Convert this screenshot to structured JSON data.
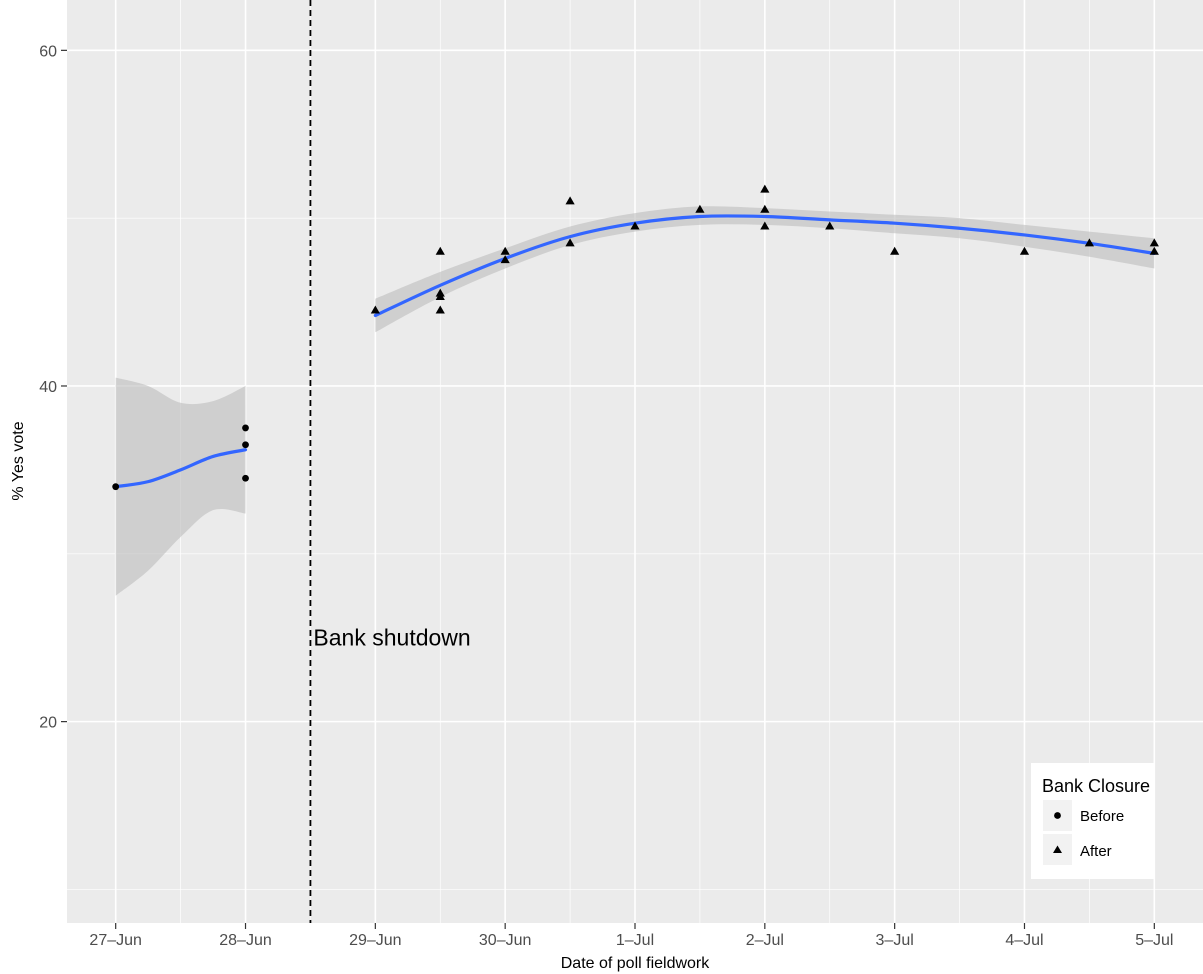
{
  "chart_data": {
    "type": "scatter",
    "xlabel": "Date of poll fieldwork",
    "ylabel": "% Yes vote",
    "x_tick_labels": [
      "27–Jun",
      "28–Jun",
      "29–Jun",
      "30–Jun",
      "1–Jul",
      "2–Jul",
      "3–Jul",
      "4–Jul",
      "5–Jul"
    ],
    "x_ticks": [
      "2015-06-27",
      "2015-06-28",
      "2015-06-29",
      "2015-06-30",
      "2015-07-01",
      "2015-07-02",
      "2015-07-03",
      "2015-07-04",
      "2015-07-05"
    ],
    "y_ticks": [
      20,
      40,
      60
    ],
    "ylim": [
      8,
      63
    ],
    "xlim": [
      "2015-06-26 15:00",
      "2015-07-05 09:00"
    ],
    "grid": true,
    "legend": {
      "title": "Bank Closure",
      "placement": "bottom-right",
      "entries": [
        {
          "label": "Before",
          "shape": "circle"
        },
        {
          "label": "After",
          "shape": "triangle"
        }
      ]
    },
    "annotations": [
      {
        "type": "vline",
        "x": "2015-06-28 12:00",
        "style": "dashed"
      },
      {
        "text": "Bank shutdown",
        "x": "2015-06-28 12:00",
        "y": 25
      }
    ],
    "series": [
      {
        "name": "Before",
        "shape": "circle",
        "points": [
          {
            "x": "2015-06-27 00:00",
            "y": 34.0
          },
          {
            "x": "2015-06-28 00:00",
            "y": 37.5
          },
          {
            "x": "2015-06-28 00:00",
            "y": 36.5
          },
          {
            "x": "2015-06-28 00:00",
            "y": 34.5
          }
        ],
        "smooth": [
          {
            "x": "2015-06-27 00:00",
            "y": 34.0,
            "lo": 27.5,
            "hi": 40.5
          },
          {
            "x": "2015-06-27 06:00",
            "y": 34.3,
            "lo": 29.0,
            "hi": 40.0
          },
          {
            "x": "2015-06-27 12:00",
            "y": 35.0,
            "lo": 31.0,
            "hi": 39.0
          },
          {
            "x": "2015-06-27 18:00",
            "y": 35.8,
            "lo": 32.6,
            "hi": 39.1
          },
          {
            "x": "2015-06-28 00:00",
            "y": 36.2,
            "lo": 32.4,
            "hi": 40.0
          }
        ]
      },
      {
        "name": "After",
        "shape": "triangle",
        "points": [
          {
            "x": "2015-06-29 00:00",
            "y": 44.5
          },
          {
            "x": "2015-06-29 12:00",
            "y": 48.0
          },
          {
            "x": "2015-06-29 12:00",
            "y": 45.5
          },
          {
            "x": "2015-06-29 12:00",
            "y": 45.3
          },
          {
            "x": "2015-06-29 12:00",
            "y": 44.5
          },
          {
            "x": "2015-06-30 00:00",
            "y": 48.0
          },
          {
            "x": "2015-06-30 00:00",
            "y": 47.5
          },
          {
            "x": "2015-06-30 12:00",
            "y": 51.0
          },
          {
            "x": "2015-06-30 12:00",
            "y": 48.5
          },
          {
            "x": "2015-07-01 00:00",
            "y": 49.5
          },
          {
            "x": "2015-07-01 12:00",
            "y": 50.5
          },
          {
            "x": "2015-07-02 00:00",
            "y": 51.7
          },
          {
            "x": "2015-07-02 00:00",
            "y": 50.5
          },
          {
            "x": "2015-07-02 00:00",
            "y": 49.5
          },
          {
            "x": "2015-07-02 12:00",
            "y": 49.5
          },
          {
            "x": "2015-07-03 00:00",
            "y": 48.0
          },
          {
            "x": "2015-07-04 00:00",
            "y": 48.0
          },
          {
            "x": "2015-07-04 12:00",
            "y": 48.5
          },
          {
            "x": "2015-07-05 00:00",
            "y": 48.5
          },
          {
            "x": "2015-07-05 00:00",
            "y": 48.0
          }
        ],
        "smooth": [
          {
            "x": "2015-06-29 00:00",
            "y": 44.2,
            "lo": 43.2,
            "hi": 45.2
          },
          {
            "x": "2015-06-29 12:00",
            "y": 46.0,
            "lo": 45.3,
            "hi": 46.8
          },
          {
            "x": "2015-06-30 00:00",
            "y": 47.6,
            "lo": 47.0,
            "hi": 48.2
          },
          {
            "x": "2015-06-30 12:00",
            "y": 48.9,
            "lo": 48.4,
            "hi": 49.5
          },
          {
            "x": "2015-07-01 00:00",
            "y": 49.7,
            "lo": 49.2,
            "hi": 50.3
          },
          {
            "x": "2015-07-01 12:00",
            "y": 50.1,
            "lo": 49.6,
            "hi": 50.7
          },
          {
            "x": "2015-07-02 00:00",
            "y": 50.1,
            "lo": 49.6,
            "hi": 50.6
          },
          {
            "x": "2015-07-02 12:00",
            "y": 49.9,
            "lo": 49.4,
            "hi": 50.4
          },
          {
            "x": "2015-07-03 00:00",
            "y": 49.7,
            "lo": 49.1,
            "hi": 50.2
          },
          {
            "x": "2015-07-03 12:00",
            "y": 49.4,
            "lo": 48.8,
            "hi": 50.0
          },
          {
            "x": "2015-07-04 00:00",
            "y": 49.0,
            "lo": 48.3,
            "hi": 49.6
          },
          {
            "x": "2015-07-04 12:00",
            "y": 48.5,
            "lo": 47.7,
            "hi": 49.2
          },
          {
            "x": "2015-07-05 00:00",
            "y": 47.9,
            "lo": 47.0,
            "hi": 48.8
          }
        ]
      }
    ],
    "colors": {
      "panel": "#ebebeb",
      "grid": "#ffffff",
      "smooth_line": "#3366ff",
      "ribbon": "#bdbdbd",
      "points": "#000000"
    }
  }
}
